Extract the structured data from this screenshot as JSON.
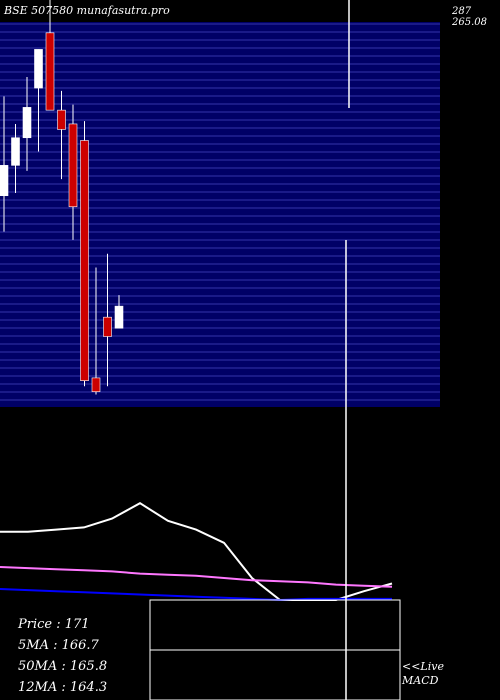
{
  "header": {
    "title": "BSE 507580  munafasutra.pro"
  },
  "chart_data": [
    {
      "type": "candlestick",
      "title": "BSE 507580  munafasutra.pro",
      "y_tick_labels": [
        "287",
        "265.08"
      ],
      "ylim": [
        145,
        287
      ],
      "grid": true,
      "candles": [
        {
          "open": 219,
          "high": 255,
          "low": 206,
          "close": 230,
          "color": "white"
        },
        {
          "open": 230,
          "high": 245,
          "low": 220,
          "close": 240,
          "color": "white"
        },
        {
          "open": 240,
          "high": 262,
          "low": 228,
          "close": 251,
          "color": "white"
        },
        {
          "open": 258,
          "high": 272,
          "low": 235,
          "close": 272,
          "color": "white"
        },
        {
          "open": 278,
          "high": 290,
          "low": 250,
          "close": 250,
          "color": "red"
        },
        {
          "open": 250,
          "high": 257,
          "low": 225,
          "close": 243,
          "color": "red"
        },
        {
          "open": 245,
          "high": 252,
          "low": 203,
          "close": 215,
          "color": "red"
        },
        {
          "open": 239,
          "high": 246,
          "low": 150,
          "close": 152,
          "color": "red"
        },
        {
          "open": 153,
          "high": 193,
          "low": 147,
          "close": 148,
          "color": "red"
        },
        {
          "open": 175,
          "high": 198,
          "low": 150,
          "close": 168,
          "color": "red"
        },
        {
          "open": 171,
          "high": 183,
          "low": 171,
          "close": 179,
          "color": "white"
        }
      ]
    },
    {
      "type": "line",
      "title": "MACD",
      "series": [
        {
          "color": "#ffffff",
          "values": [
            0.62,
            0.62,
            0.64,
            0.66,
            0.74,
            0.88,
            0.72,
            0.64,
            0.52,
            0.2,
            0.0,
            0.0,
            0.0,
            0.08,
            0.15
          ]
        },
        {
          "color": "#ff77ff",
          "values": [
            0.3,
            0.29,
            0.28,
            0.27,
            0.26,
            0.24,
            0.23,
            0.22,
            0.2,
            0.18,
            0.17,
            0.16,
            0.14,
            0.13,
            0.12
          ]
        },
        {
          "color": "#0000ff",
          "values": [
            0.1,
            0.09,
            0.08,
            0.07,
            0.06,
            0.05,
            0.04,
            0.03,
            0.02,
            0.01,
            0.0,
            0.01,
            0.01,
            0.01,
            0.01
          ]
        }
      ]
    }
  ],
  "stats": {
    "price_label": "Price   : 171",
    "ma5_label": "5MA : 166.7",
    "ma50_label": "50MA : 165.8",
    "ma12_label": "12MA : 164.3"
  },
  "live": {
    "line1": "<<Live",
    "line2": "MACD"
  },
  "colors": {
    "grid": "#000066",
    "grid_line": "#3333aa",
    "bull": "#ffffff",
    "bear": "#cc0000",
    "accent": "#ff77ff"
  }
}
